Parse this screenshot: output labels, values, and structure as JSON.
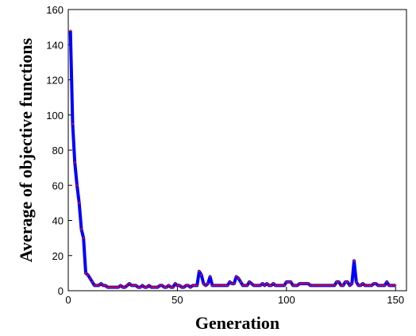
{
  "chart_data": {
    "type": "line",
    "title": "",
    "xlabel": "Generation",
    "ylabel": "Average of objective functions",
    "xlim": [
      0,
      155
    ],
    "ylim": [
      0,
      160
    ],
    "xticks": [
      0,
      50,
      100,
      150
    ],
    "yticks": [
      0,
      20,
      40,
      60,
      80,
      100,
      120,
      140,
      160
    ],
    "grid": false,
    "legend": "none",
    "colors": {
      "line": "#0000ff",
      "marker": "#ff0000"
    },
    "series": [
      {
        "x": [
          1,
          2,
          3,
          4,
          5,
          6,
          7,
          8,
          9,
          10,
          11,
          12,
          13,
          14,
          15,
          16,
          17,
          18,
          19,
          20,
          21,
          22,
          23,
          24,
          25,
          26,
          27,
          28,
          29,
          30,
          31,
          32,
          33,
          34,
          35,
          36,
          37,
          38,
          39,
          40,
          41,
          42,
          43,
          44,
          45,
          46,
          47,
          48,
          49,
          50,
          51,
          52,
          53,
          54,
          55,
          56,
          57,
          58,
          59,
          60,
          61,
          62,
          63,
          64,
          65,
          66,
          67,
          68,
          69,
          70,
          71,
          72,
          73,
          74,
          75,
          76,
          77,
          78,
          79,
          80,
          81,
          82,
          83,
          84,
          85,
          86,
          87,
          88,
          89,
          90,
          91,
          92,
          93,
          94,
          95,
          96,
          97,
          98,
          99,
          100,
          101,
          102,
          103,
          104,
          105,
          106,
          107,
          108,
          109,
          110,
          111,
          112,
          113,
          114,
          115,
          116,
          117,
          118,
          119,
          120,
          121,
          122,
          123,
          124,
          125,
          126,
          127,
          128,
          129,
          130,
          131,
          132,
          133,
          134,
          135,
          136,
          137,
          138,
          139,
          140,
          141,
          142,
          143,
          144,
          145,
          146,
          147,
          148,
          149,
          150
        ],
        "y": [
          148,
          95,
          73,
          60,
          50,
          35,
          30,
          10,
          9,
          7,
          5,
          3,
          3,
          3,
          4,
          3,
          3,
          2,
          2,
          2,
          2,
          2,
          2,
          3,
          2,
          2,
          3,
          4,
          3,
          3,
          3,
          2,
          2,
          3,
          2,
          2,
          3,
          2,
          2,
          2,
          2,
          3,
          3,
          2,
          2,
          3,
          2,
          2,
          4,
          3,
          3,
          2,
          2,
          3,
          3,
          2,
          3,
          3,
          3,
          11,
          9,
          4,
          3,
          4,
          8,
          3,
          3,
          3,
          3,
          3,
          3,
          3,
          3,
          5,
          4,
          4,
          8,
          7,
          5,
          3,
          3,
          3,
          5,
          4,
          3,
          3,
          3,
          3,
          4,
          3,
          4,
          3,
          3,
          4,
          3,
          3,
          3,
          3,
          3,
          5,
          5,
          5,
          3,
          3,
          3,
          4,
          4,
          4,
          4,
          4,
          3,
          3,
          3,
          3,
          3,
          3,
          3,
          3,
          3,
          3,
          3,
          3,
          5,
          5,
          3,
          3,
          5,
          5,
          3,
          4,
          17,
          5,
          3,
          3,
          4,
          3,
          3,
          3,
          3,
          4,
          4,
          3,
          3,
          3,
          3,
          5,
          3,
          3,
          3,
          3
        ]
      }
    ]
  }
}
